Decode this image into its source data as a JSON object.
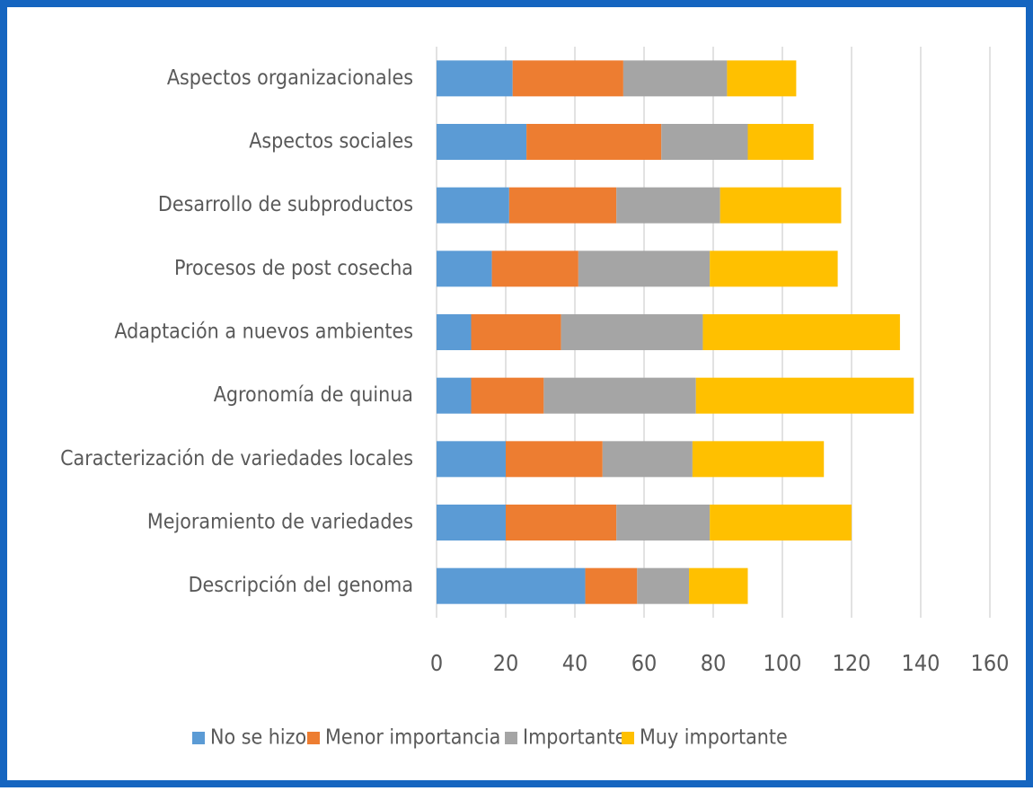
{
  "chart_data": {
    "type": "stacked-bar",
    "orientation": "horizontal",
    "categories": [
      "Aspectos organizacionales",
      "Aspectos sociales",
      "Desarrollo de subproductos",
      "Procesos de post cosecha",
      "Adaptación a nuevos ambientes",
      "Agronomía de quinua",
      "Caracterización de variedades locales",
      "Mejoramiento de variedades",
      "Descripción del genoma"
    ],
    "series": [
      {
        "name": "No se hizo",
        "color": "#5b9bd5",
        "values": [
          22,
          26,
          21,
          16,
          10,
          10,
          20,
          20,
          43
        ]
      },
      {
        "name": "Menor importancia",
        "color": "#ed7d31",
        "values": [
          32,
          39,
          31,
          25,
          26,
          21,
          28,
          32,
          15
        ]
      },
      {
        "name": "Importante",
        "color": "#a5a5a5",
        "values": [
          30,
          25,
          30,
          38,
          41,
          44,
          26,
          27,
          15
        ]
      },
      {
        "name": "Muy importante",
        "color": "#ffc000",
        "values": [
          20,
          19,
          35,
          37,
          57,
          63,
          38,
          41,
          17
        ]
      }
    ],
    "xlim": [
      0,
      160
    ],
    "xticks": [
      0,
      20,
      40,
      60,
      80,
      100,
      120,
      140,
      160
    ],
    "grid": true,
    "legend": "bottom"
  }
}
